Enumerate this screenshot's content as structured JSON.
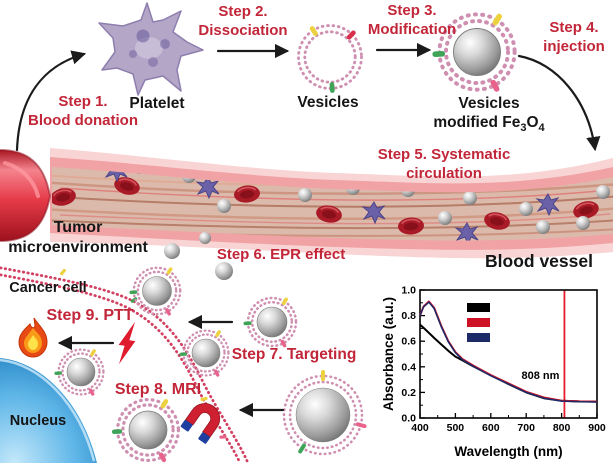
{
  "labels": {
    "step1_l1": "Step 1.",
    "step1_l2": "Blood donation",
    "step2_l1": "Step 2.",
    "step2_l2": "Dissociation",
    "step3_l1": "Step 3.",
    "step3_l2": "Modification",
    "step4_l1": "Step 4.",
    "step4_l2": "injection",
    "step5_l1": "Step 5. Systematic",
    "step5_l2": "circulation",
    "step6": "Step 6. EPR effect",
    "step7": "Step 7. Targeting",
    "step8": "Step 8. MRI",
    "step9": "Step 9. PTT",
    "platelet": "Platelet",
    "vesicles": "Vesicles",
    "modves_l1": "Vesicles",
    "modves_pre": "modified Fe",
    "modves_sub1": "3",
    "modves_mid": "O",
    "modves_sub2": "4",
    "tumor_l1": "Tumor",
    "tumor_l2": "microenvironment",
    "blood_vessel": "Blood vessel",
    "cancer_cell": "Cancer cell",
    "nucleus": "Nucleus"
  },
  "colors": {
    "step_red": "#c22639",
    "text_black": "#151515",
    "corona_pink": "#cf8fb0",
    "membrane_red": "#d34061",
    "vessel_pink": "#f1a2a4",
    "vessel_inner": "#dcbaab",
    "rbc_red": "#a81a26",
    "platelet_purple": "#b3a6c7",
    "nucleus_blue": "#4ba6dc",
    "flame_orange": "#e84a15",
    "bolt_red": "#df1b2e",
    "magnet_red": "#ce2030",
    "magnet_blue": "#1e3f9f"
  },
  "icons": [
    "flame-icon",
    "lightning-icon",
    "magnet-icon",
    "arrow"
  ],
  "chart_data": {
    "type": "line",
    "title": "",
    "xlabel": "Wavelength (nm)",
    "ylabel": "Absorbance (a.u.)",
    "xlim": [
      400,
      900
    ],
    "ylim": [
      0,
      1.0
    ],
    "xticks": [
      400,
      500,
      600,
      700,
      800,
      900
    ],
    "xminor": [
      450,
      550,
      650,
      750,
      850
    ],
    "yticks": [
      0.0,
      0.2,
      0.4,
      0.6,
      0.8,
      1.0
    ],
    "yminor": [
      0.1,
      0.3,
      0.5,
      0.7,
      0.9
    ],
    "grid": false,
    "x": [
      400,
      410,
      425,
      440,
      460,
      480,
      500,
      520,
      550,
      600,
      650,
      700,
      750,
      800,
      850,
      900
    ],
    "series": [
      {
        "name": "sample-black",
        "color": "#000000",
        "values": [
          0.73,
          0.705,
          0.665,
          0.625,
          0.575,
          0.525,
          0.48,
          0.45,
          0.405,
          0.335,
          0.265,
          0.2,
          0.155,
          0.135,
          0.13,
          0.128
        ]
      },
      {
        "name": "sample-red",
        "color": "#cf1126",
        "values": [
          0.8,
          0.87,
          0.91,
          0.86,
          0.72,
          0.6,
          0.515,
          0.46,
          0.41,
          0.335,
          0.27,
          0.205,
          0.16,
          0.135,
          0.13,
          0.128
        ]
      },
      {
        "name": "sample-navy",
        "color": "#1c2a68",
        "values": [
          0.8,
          0.868,
          0.905,
          0.855,
          0.715,
          0.595,
          0.51,
          0.455,
          0.405,
          0.33,
          0.265,
          0.2,
          0.155,
          0.132,
          0.127,
          0.125
        ]
      }
    ],
    "legend": {
      "position": "upper-left-inside",
      "entries": [
        {
          "label": "",
          "color": "#000000"
        },
        {
          "label": "",
          "color": "#cf1126"
        },
        {
          "label": "",
          "color": "#1c2a68"
        }
      ]
    },
    "annotation": {
      "text": "808 nm",
      "x": 808,
      "color": "#e41c2c"
    }
  }
}
